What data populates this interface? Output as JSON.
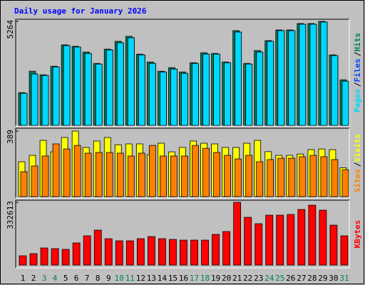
{
  "chart_data": [
    {
      "type": "bar",
      "title": "Daily usage for January 2026",
      "ylim": [
        0,
        5264
      ],
      "yticks": [
        5264
      ],
      "legend_separator": "/",
      "series": [
        {
          "name": "Hits",
          "color": "#00805c",
          "values": [
            1658,
            2740,
            2560,
            2992,
            4074,
            4002,
            3713,
            3136,
            3857,
            4254,
            4506,
            3605,
            3208,
            2740,
            2920,
            2704,
            3172,
            3677,
            3641,
            3208,
            4795,
            3136,
            3785,
            4290,
            4831,
            4831,
            5155,
            5155,
            5264,
            3569,
            2307
          ]
        },
        {
          "name": "Files",
          "color": "#0040ff",
          "values": [
            1622,
            2596,
            2524,
            2956,
            4038,
            3966,
            3641,
            3100,
            3821,
            4182,
            4434,
            3569,
            3136,
            2704,
            2848,
            2632,
            3136,
            3605,
            3605,
            3172,
            4723,
            3100,
            3713,
            4254,
            4795,
            4795,
            5119,
            5119,
            5228,
            3533,
            2235
          ]
        },
        {
          "name": "Pages",
          "color": "#00d8ff",
          "values": [
            1622,
            2596,
            2524,
            2956,
            4038,
            3966,
            3641,
            3100,
            3821,
            4182,
            4434,
            3569,
            3136,
            2704,
            2848,
            2632,
            3136,
            3605,
            3605,
            3172,
            4723,
            3100,
            3713,
            4254,
            4795,
            4795,
            5119,
            5119,
            5228,
            3533,
            2235
          ]
        }
      ]
    },
    {
      "type": "bar",
      "ylim": [
        0,
        389
      ],
      "yticks": [
        389
      ],
      "legend_separator": "/",
      "series": [
        {
          "name": "Visits",
          "color": "#ffff00",
          "values": [
            207,
            245,
            334,
            266,
            351,
            389,
            292,
            330,
            351,
            308,
            313,
            313,
            249,
            317,
            266,
            292,
            330,
            317,
            313,
            292,
            292,
            317,
            334,
            267,
            245,
            245,
            253,
            279,
            283,
            279,
            171
          ]
        },
        {
          "name": "Sites",
          "color": "#ff8000",
          "values": [
            148,
            182,
            241,
            313,
            283,
            304,
            258,
            262,
            262,
            258,
            241,
            258,
            304,
            241,
            241,
            241,
            304,
            287,
            262,
            245,
            224,
            245,
            207,
            220,
            228,
            228,
            237,
            245,
            237,
            220,
            160
          ]
        }
      ]
    },
    {
      "type": "bar",
      "ylim": [
        0,
        332613
      ],
      "yticks": [
        332613
      ],
      "categories": [
        "1",
        "2",
        "3",
        "4",
        "5",
        "6",
        "7",
        "8",
        "9",
        "10",
        "11",
        "12",
        "13",
        "14",
        "15",
        "16",
        "17",
        "18",
        "19",
        "20",
        "21",
        "22",
        "23",
        "24",
        "25",
        "26",
        "27",
        "28",
        "29",
        "30",
        "31"
      ],
      "category_colors": [
        "#000000",
        "#000000",
        "#00805c",
        "#00805c",
        "#000000",
        "#000000",
        "#000000",
        "#000000",
        "#000000",
        "#00805c",
        "#00805c",
        "#000000",
        "#000000",
        "#000000",
        "#000000",
        "#000000",
        "#00805c",
        "#00805c",
        "#000000",
        "#000000",
        "#000000",
        "#000000",
        "#000000",
        "#00805c",
        "#00805c",
        "#000000",
        "#000000",
        "#000000",
        "#000000",
        "#000000",
        "#00805c"
      ],
      "series": [
        {
          "name": "KBytes",
          "color": "#ff0000",
          "values": [
            49140,
            60480,
            90720,
            86940,
            83160,
            117180,
            154980,
            185220,
            139860,
            128520,
            128520,
            139860,
            151200,
            139860,
            136080,
            132300,
            132300,
            132300,
            162540,
            177660,
            332613,
            253260,
            219240,
            264600,
            264600,
            268380,
            294840,
            317520,
            291060,
            211680,
            154980
          ]
        }
      ]
    }
  ]
}
